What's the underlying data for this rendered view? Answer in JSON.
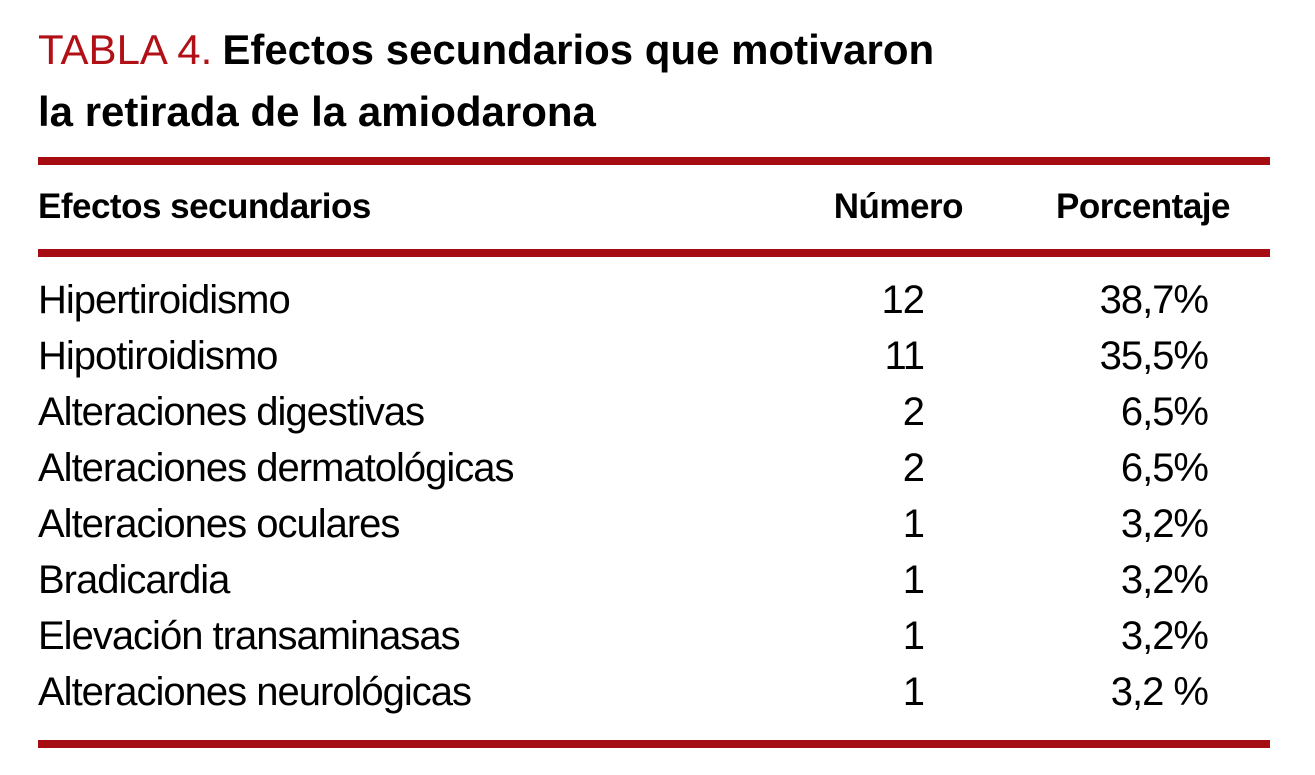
{
  "table": {
    "label": "TABLA 4.",
    "title_line1": "Efectos secundarios que motivaron",
    "title_line2": "la retirada de la amiodarona",
    "columns": {
      "effect": "Efectos secundarios",
      "number": "Número",
      "percentage": "Porcentaje"
    },
    "rows": [
      {
        "effect": "Hipertiroidismo",
        "number": "12",
        "percentage": "38,7%"
      },
      {
        "effect": "Hipotiroidismo",
        "number": "11",
        "percentage": "35,5%"
      },
      {
        "effect": "Alteraciones digestivas",
        "number": "2",
        "percentage": "6,5%"
      },
      {
        "effect": "Alteraciones dermatológicas",
        "number": "2",
        "percentage": "6,5%"
      },
      {
        "effect": "Alteraciones oculares",
        "number": "1",
        "percentage": "3,2%"
      },
      {
        "effect": "Bradicardia",
        "number": "1",
        "percentage": "3,2%"
      },
      {
        "effect": "Elevación transaminasas",
        "number": "1",
        "percentage": "3,2%"
      },
      {
        "effect": "Alteraciones neurológicas",
        "number": "1",
        "percentage": "3,2 %"
      }
    ],
    "colors": {
      "label_red": "#b11017",
      "rule_red": "#a60d12"
    }
  }
}
